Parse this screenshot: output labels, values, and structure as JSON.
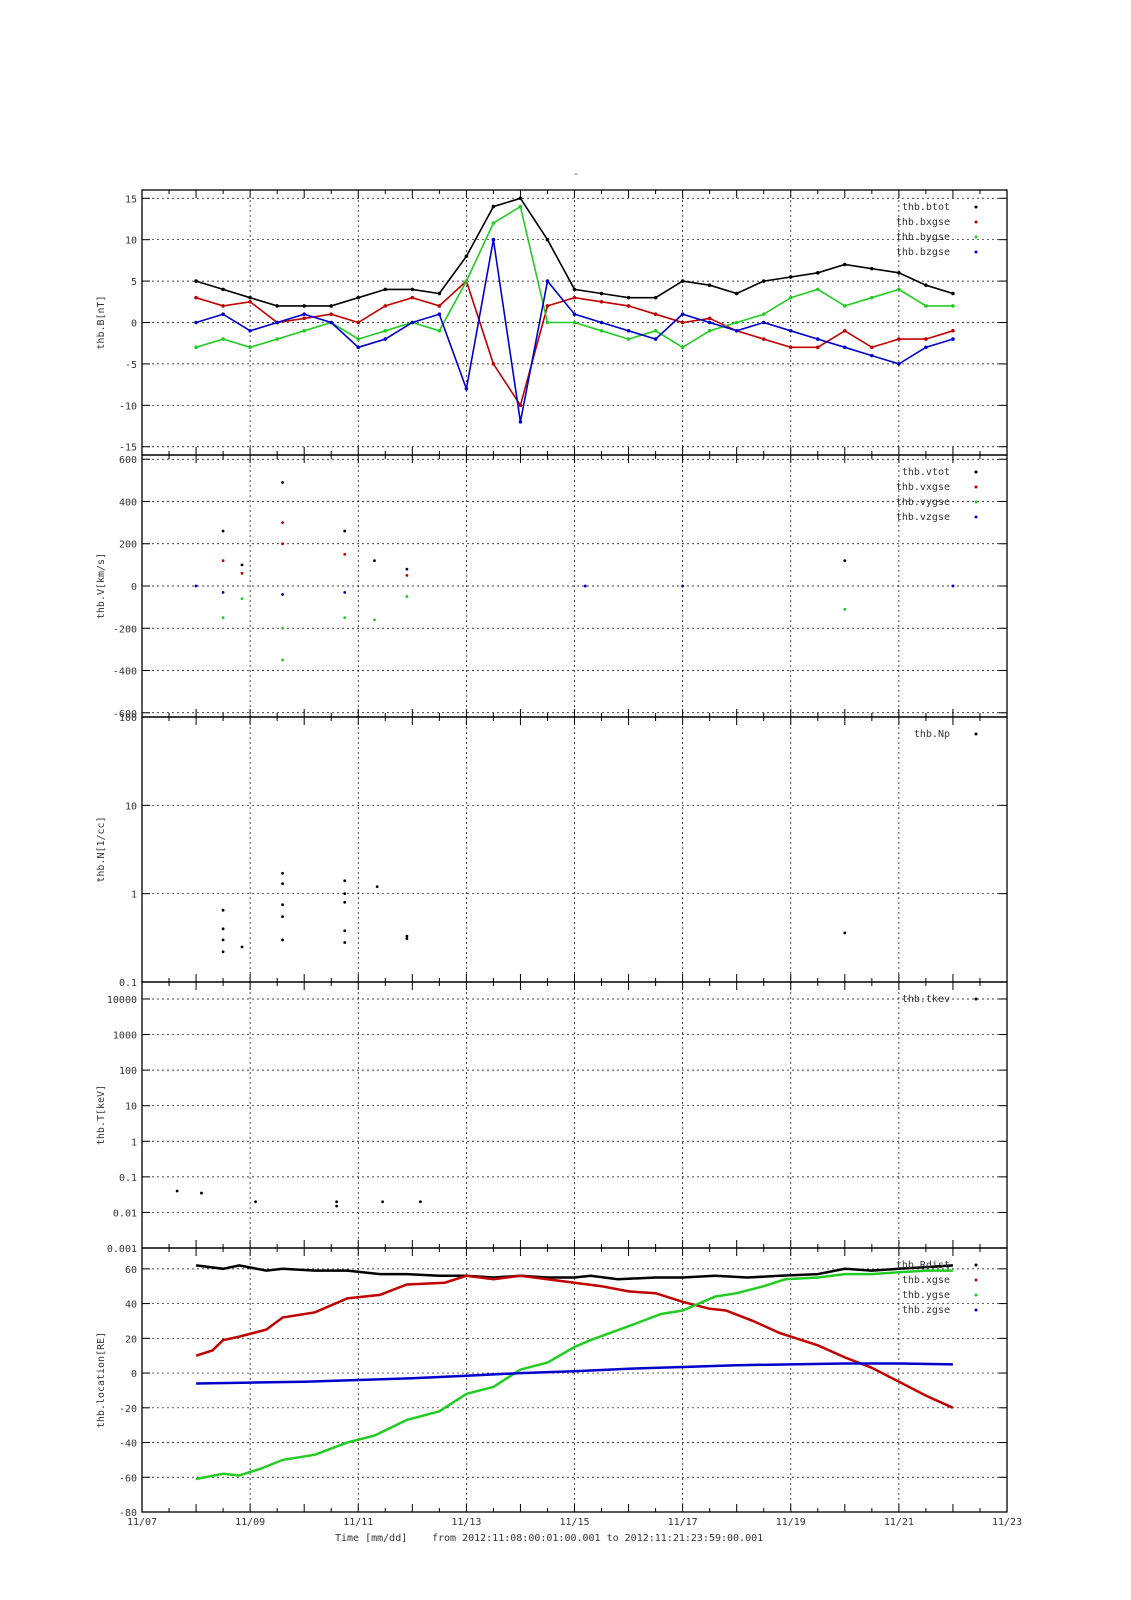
{
  "page_title": "-",
  "footer": {
    "xlabel": "Time [mm/dd]",
    "range_text": "from 2012:11:08:00:01:00.001  to  2012:11:21:23:59:00.001"
  },
  "x_axis": {
    "range": [
      7,
      23
    ],
    "ticks": [
      7,
      9,
      11,
      13,
      15,
      17,
      19,
      21,
      23
    ],
    "tick_labels": [
      "11/07",
      "11/09",
      "11/11",
      "11/13",
      "11/15",
      "11/17",
      "11/19",
      "11/21",
      "11/23"
    ]
  },
  "colors": {
    "black": "#000000",
    "red": "#c00000",
    "green": "#22cc22",
    "blue": "#0000cc"
  },
  "chart_data": [
    {
      "type": "scatter",
      "ylabel": "thb.B[nT]",
      "ylim": [
        -16,
        16
      ],
      "yscale": "linear",
      "yticks": [
        -15,
        -10,
        -5,
        0,
        5,
        10,
        15
      ],
      "ytick_labels": [
        "-15",
        "-10",
        "-5",
        "0",
        "5",
        "10",
        "15"
      ],
      "grid": true,
      "legend_position": "top-right",
      "series": [
        {
          "name": "thb.btot",
          "color": "#000000",
          "x": [
            8.0,
            8.5,
            9.0,
            9.5,
            10.0,
            10.5,
            11.0,
            11.5,
            12.0,
            12.5,
            13.0,
            13.5,
            14.0,
            14.5,
            15.0,
            15.5,
            16.0,
            16.5,
            17.0,
            17.5,
            18.0,
            18.5,
            19.0,
            19.5,
            20.0,
            20.5,
            21.0,
            21.5,
            22.0
          ],
          "values": [
            5,
            4,
            3,
            2,
            2,
            2,
            3,
            4,
            4,
            3.5,
            8,
            14,
            15,
            10,
            4,
            3.5,
            3,
            3,
            5,
            4.5,
            3.5,
            5,
            5.5,
            6,
            7,
            6.5,
            6,
            4.5,
            3.5
          ]
        },
        {
          "name": "thb.bxgse",
          "color": "#c00000",
          "x": [
            8.0,
            8.5,
            9.0,
            9.5,
            10.0,
            10.5,
            11.0,
            11.5,
            12.0,
            12.5,
            13.0,
            13.5,
            14.0,
            14.5,
            15.0,
            15.5,
            16.0,
            16.5,
            17.0,
            17.5,
            18.0,
            18.5,
            19.0,
            19.5,
            20.0,
            20.5,
            21.0,
            21.5,
            22.0
          ],
          "values": [
            3,
            2,
            2.5,
            0,
            0.5,
            1,
            0,
            2,
            3,
            2,
            5,
            -5,
            -10,
            2,
            3,
            2.5,
            2,
            1,
            0,
            0.5,
            -1,
            -2,
            -3,
            -3,
            -1,
            -3,
            -2,
            -2,
            -1
          ]
        },
        {
          "name": "thb.bygse",
          "color": "#22cc22",
          "x": [
            8.0,
            8.5,
            9.0,
            9.5,
            10.0,
            10.5,
            11.0,
            11.5,
            12.0,
            12.5,
            13.0,
            13.5,
            14.0,
            14.5,
            15.0,
            15.5,
            16.0,
            16.5,
            17.0,
            17.5,
            18.0,
            18.5,
            19.0,
            19.5,
            20.0,
            20.5,
            21.0,
            21.5,
            22.0
          ],
          "values": [
            -3,
            -2,
            -3,
            -2,
            -1,
            0,
            -2,
            -1,
            0,
            -1,
            5,
            12,
            14,
            0,
            0,
            -1,
            -2,
            -1,
            -3,
            -1,
            0,
            1,
            3,
            4,
            2,
            3,
            4,
            2,
            2
          ]
        },
        {
          "name": "thb.bzgse",
          "color": "#0000cc",
          "x": [
            8.0,
            8.5,
            9.0,
            9.5,
            10.0,
            10.5,
            11.0,
            11.5,
            12.0,
            12.5,
            13.0,
            13.5,
            14.0,
            14.5,
            15.0,
            15.5,
            16.0,
            16.5,
            17.0,
            17.5,
            18.0,
            18.5,
            19.0,
            19.5,
            20.0,
            20.5,
            21.0,
            21.5,
            22.0
          ],
          "values": [
            0,
            1,
            -1,
            0,
            1,
            0,
            -3,
            -2,
            0,
            1,
            -8,
            10,
            -12,
            5,
            1,
            0,
            -1,
            -2,
            1,
            0,
            -1,
            0,
            -1,
            -2,
            -3,
            -4,
            -5,
            -3,
            -2
          ]
        }
      ]
    },
    {
      "type": "scatter",
      "ylabel": "thb.V[km/s]",
      "ylim": [
        -620,
        620
      ],
      "yscale": "linear",
      "yticks": [
        -600,
        -400,
        -200,
        0,
        200,
        400,
        600
      ],
      "ytick_labels": [
        "-600",
        "-400",
        "-200",
        "0",
        "200",
        "400",
        "600"
      ],
      "grid": true,
      "legend_position": "top-right",
      "series": [
        {
          "name": "thb.vtot",
          "color": "#000000",
          "x": [
            8.5,
            8.85,
            9.6,
            10.75,
            11.3,
            11.9,
            20.0
          ],
          "values": [
            260,
            100,
            490,
            260,
            120,
            80,
            120
          ]
        },
        {
          "name": "thb.vxgse",
          "color": "#c00000",
          "x": [
            8.0,
            8.5,
            8.85,
            9.6,
            9.6,
            10.75,
            11.9,
            15.2,
            17.0,
            22.0
          ],
          "values": [
            0,
            120,
            60,
            300,
            200,
            150,
            50,
            0,
            0,
            0
          ]
        },
        {
          "name": "thb.vygse",
          "color": "#22cc22",
          "x": [
            8.5,
            8.85,
            9.6,
            9.6,
            10.75,
            11.3,
            11.9,
            20.0
          ],
          "values": [
            -150,
            -60,
            -350,
            -200,
            -150,
            -160,
            -50,
            -110
          ]
        },
        {
          "name": "thb.vzgse",
          "color": "#0000cc",
          "x": [
            8.0,
            8.5,
            9.6,
            10.75,
            15.2,
            17.0,
            22.0
          ],
          "values": [
            0,
            -30,
            -40,
            -30,
            0,
            0,
            0
          ]
        }
      ]
    },
    {
      "type": "scatter",
      "ylabel": "thb.N[1/cc]",
      "ylim": [
        0.1,
        100
      ],
      "yscale": "log",
      "yticks": [
        0.1,
        1,
        10,
        100
      ],
      "ytick_labels": [
        "0.1",
        "1",
        "10",
        "100"
      ],
      "grid": true,
      "legend_position": "top-right",
      "series": [
        {
          "name": "thb.Np",
          "color": "#000000",
          "x": [
            8.5,
            8.5,
            8.5,
            8.5,
            8.85,
            9.6,
            9.6,
            9.6,
            9.6,
            9.6,
            10.75,
            10.75,
            10.75,
            10.75,
            10.75,
            11.35,
            11.9,
            11.9,
            20.0
          ],
          "values": [
            0.65,
            0.4,
            0.3,
            0.22,
            0.25,
            1.7,
            1.3,
            0.75,
            0.55,
            0.3,
            1.4,
            1.0,
            0.8,
            0.38,
            0.28,
            1.2,
            0.33,
            0.31,
            0.36
          ]
        }
      ]
    },
    {
      "type": "scatter",
      "ylabel": "thb.T[keV]",
      "ylim": [
        0.001,
        30000
      ],
      "yscale": "log",
      "yticks": [
        0.001,
        0.01,
        0.1,
        1,
        10,
        100,
        1000,
        10000
      ],
      "ytick_labels": [
        "0.001",
        "0.01",
        "0.1",
        "1",
        "10",
        "100",
        "1000",
        "10000"
      ],
      "grid": true,
      "legend_position": "top-right",
      "series": [
        {
          "name": "thb.tkev",
          "color": "#000000",
          "x": [
            7.65,
            8.1,
            9.1,
            10.6,
            10.6,
            11.45,
            12.15
          ],
          "values": [
            0.04,
            0.035,
            0.02,
            0.02,
            0.015,
            0.02,
            0.02
          ]
        }
      ]
    },
    {
      "type": "line",
      "ylabel": "thb.location[RE]",
      "ylim": [
        -80,
        72
      ],
      "yscale": "linear",
      "yticks": [
        -80,
        -60,
        -40,
        -20,
        0,
        20,
        40,
        60
      ],
      "ytick_labels": [
        "-80",
        "-60",
        "-40",
        "-20",
        "0",
        "20",
        "40",
        "60"
      ],
      "grid": true,
      "legend_position": "top-right",
      "series": [
        {
          "name": "thb.Rdist",
          "color": "#000000",
          "x": [
            8.0,
            8.5,
            8.8,
            9.3,
            9.6,
            10.2,
            10.8,
            11.4,
            11.9,
            12.5,
            13.0,
            13.5,
            14.0,
            14.5,
            15.0,
            15.3,
            15.8,
            16.5,
            17.0,
            17.6,
            18.2,
            18.8,
            19.5,
            20.0,
            20.5,
            21.0,
            21.5,
            22.0
          ],
          "values": [
            62,
            60,
            62,
            59,
            60,
            59,
            59,
            57,
            57,
            56,
            56,
            55,
            56,
            55,
            55,
            56,
            54,
            55,
            55,
            56,
            55,
            56,
            57,
            60,
            59,
            60,
            61,
            62
          ]
        },
        {
          "name": "thb.xgse",
          "color": "#c00000",
          "x": [
            8.0,
            8.3,
            8.5,
            8.8,
            9.3,
            9.6,
            10.2,
            10.8,
            11.4,
            11.9,
            12.6,
            13.0,
            13.5,
            14.0,
            14.5,
            15.0,
            15.5,
            16.0,
            16.5,
            17.0,
            17.5,
            17.8,
            18.3,
            18.8,
            19.5,
            20.0,
            20.5,
            21.0,
            21.5,
            22.0
          ],
          "values": [
            10,
            13,
            19,
            21,
            25,
            32,
            35,
            43,
            45,
            51,
            52,
            56,
            54,
            56,
            54,
            52,
            50,
            47,
            46,
            41,
            37,
            36,
            30,
            23,
            16,
            9,
            3,
            -5,
            -13,
            -20
          ]
        },
        {
          "name": "thb.ygse",
          "color": "#22cc22",
          "x": [
            8.0,
            8.5,
            8.8,
            9.2,
            9.6,
            10.2,
            10.8,
            11.3,
            11.9,
            12.5,
            13.0,
            13.5,
            14.0,
            14.5,
            15.0,
            15.3,
            16.0,
            16.6,
            17.0,
            17.6,
            18.0,
            18.5,
            18.9,
            19.5,
            20.0,
            20.5,
            21.0,
            21.5,
            22.0
          ],
          "values": [
            -61,
            -58,
            -59,
            -55,
            -50,
            -47,
            -40,
            -36,
            -27,
            -22,
            -12,
            -8,
            2,
            6,
            15,
            19,
            27,
            34,
            36,
            44,
            46,
            50,
            54,
            55,
            57,
            57,
            58,
            59,
            59
          ]
        },
        {
          "name": "thb.zgse",
          "color": "#0000cc",
          "x": [
            8.0,
            9.0,
            10.0,
            11.0,
            12.0,
            13.0,
            14.0,
            15.0,
            16.0,
            17.0,
            18.0,
            19.0,
            20.0,
            21.0,
            22.0
          ],
          "values": [
            -6,
            -5.5,
            -5,
            -4,
            -3,
            -1.5,
            0,
            1,
            2.5,
            3.5,
            4.5,
            5,
            5.5,
            5.5,
            5
          ]
        }
      ]
    }
  ]
}
